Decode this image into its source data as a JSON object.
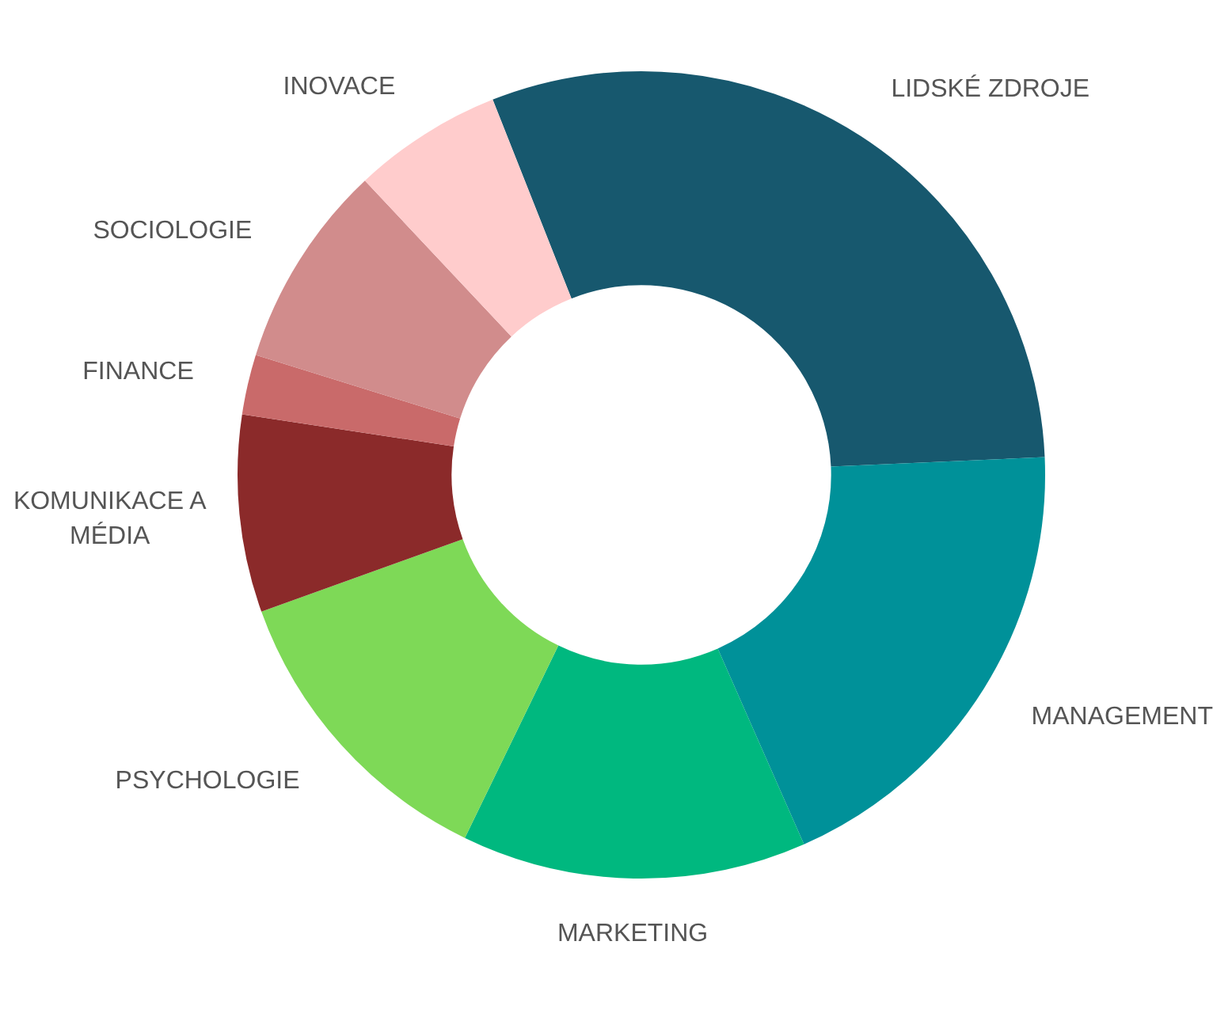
{
  "chart_data": {
    "type": "donut",
    "categories": [
      "LIDSKÉ ZDROJE",
      "MANAGEMENT",
      "MARKETING",
      "PSYCHOLOGIE",
      "KOMUNIKACE A MÉDIA",
      "FINANCE",
      "SOCIOLOGIE",
      "INOVACE"
    ],
    "values": [
      30.3,
      19.1,
      13.8,
      12.3,
      7.9,
      2.4,
      8.2,
      6.0
    ],
    "colors": [
      "#17586e",
      "#009199",
      "#00b87f",
      "#7ed957",
      "#8b2a2a",
      "#c96a6a",
      "#d18c8c",
      "#ffcccc"
    ],
    "legend": false
  }
}
